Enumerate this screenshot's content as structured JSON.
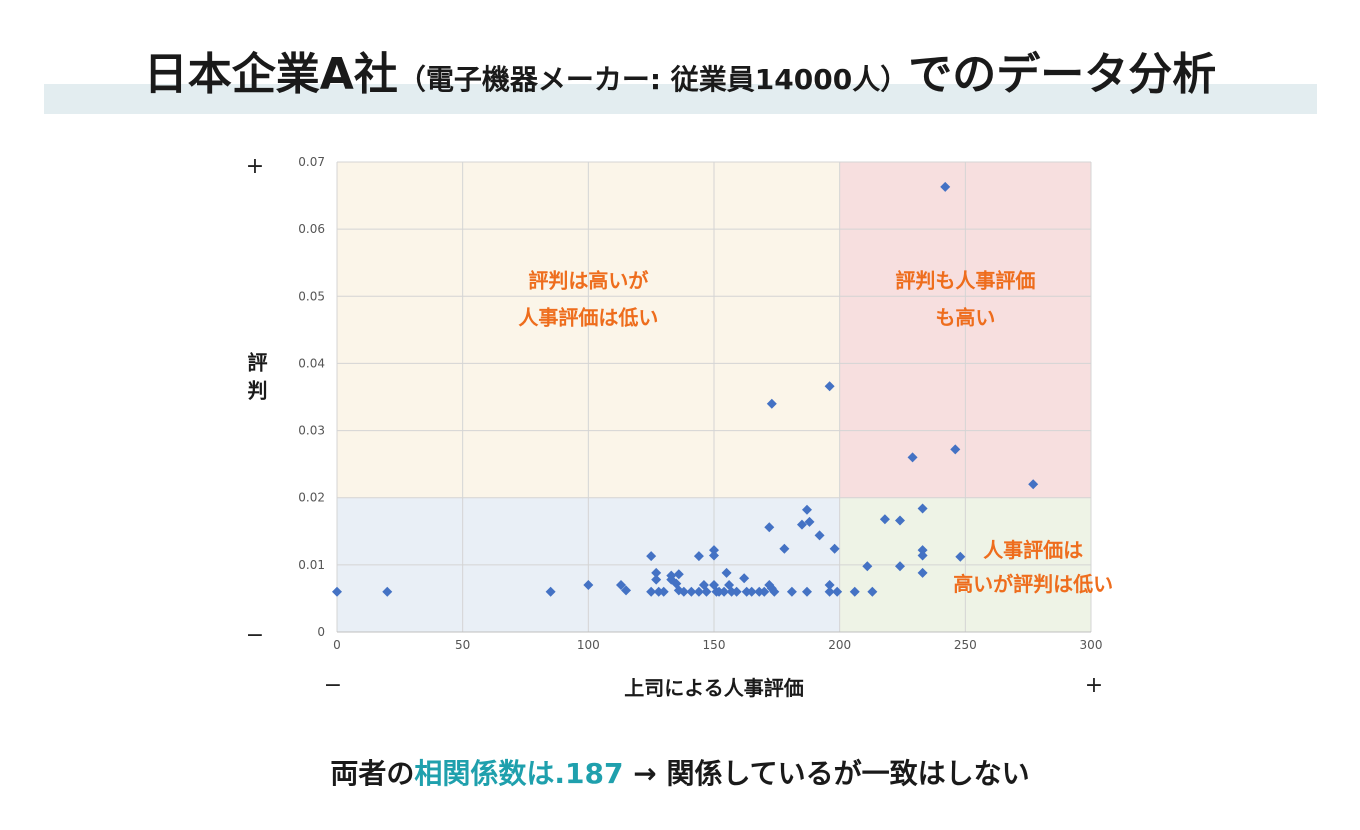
{
  "header": {
    "title_main": "日本企業A社",
    "title_paren": "（電子機器メーカー: 従業員14000人）",
    "title_tail": "でのデータ分析"
  },
  "footer": {
    "part1": "両者の",
    "highlight": "相関係数は.187",
    "part2": " → 関係しているが一致はしない"
  },
  "colors": {
    "quadrant_top_left": "#fbf5e9",
    "quadrant_top_right": "#f7dfdf",
    "quadrant_bottom_left": "#e9eff6",
    "quadrant_bottom_right": "#eef3e6",
    "marker": "#4472c4",
    "label": "#ee6d1d",
    "highlight": "#1fa0ad"
  },
  "chart_data": {
    "type": "scatter",
    "xlabel": "上司による人事評価",
    "ylabel": "評判",
    "xlim": [
      0,
      300
    ],
    "ylim": [
      0,
      0.07
    ],
    "x_ticks": [
      "0",
      "50",
      "100",
      "150",
      "200",
      "250",
      "300"
    ],
    "y_ticks": [
      "0",
      "0.01",
      "0.02",
      "0.03",
      "0.04",
      "0.05",
      "0.06",
      "0.07"
    ],
    "x_split": 200,
    "y_split": 0.02,
    "axis_signs": {
      "y_top": "+",
      "y_bottom": "−",
      "x_left": "−",
      "x_right": "+"
    },
    "quadrant_labels": {
      "top_left": [
        "評判は高いが",
        "人事評価は低い"
      ],
      "top_right": [
        "評判も人事評価",
        "も高い"
      ],
      "bottom_right": [
        "人事評価は",
        "高いが評判は低い"
      ]
    },
    "points": [
      [
        0,
        0.006
      ],
      [
        20,
        0.006
      ],
      [
        85,
        0.006
      ],
      [
        100,
        0.007
      ],
      [
        113,
        0.007
      ],
      [
        115,
        0.0062
      ],
      [
        125,
        0.0113
      ],
      [
        125,
        0.006
      ],
      [
        127,
        0.0088
      ],
      [
        127,
        0.0078
      ],
      [
        128,
        0.006
      ],
      [
        130,
        0.006
      ],
      [
        133,
        0.0084
      ],
      [
        133,
        0.0078
      ],
      [
        135,
        0.0072
      ],
      [
        136,
        0.0086
      ],
      [
        136,
        0.0062
      ],
      [
        138,
        0.006
      ],
      [
        141,
        0.006
      ],
      [
        144,
        0.0113
      ],
      [
        144,
        0.006
      ],
      [
        146,
        0.007
      ],
      [
        147,
        0.006
      ],
      [
        150,
        0.0122
      ],
      [
        150,
        0.0114
      ],
      [
        150,
        0.007
      ],
      [
        151,
        0.006
      ],
      [
        152,
        0.006
      ],
      [
        154,
        0.006
      ],
      [
        155,
        0.0088
      ],
      [
        156,
        0.007
      ],
      [
        157,
        0.006
      ],
      [
        159,
        0.006
      ],
      [
        162,
        0.008
      ],
      [
        163,
        0.006
      ],
      [
        165,
        0.006
      ],
      [
        168,
        0.006
      ],
      [
        170,
        0.006
      ],
      [
        172,
        0.007
      ],
      [
        172,
        0.0156
      ],
      [
        173,
        0.0065
      ],
      [
        173,
        0.034
      ],
      [
        174,
        0.006
      ],
      [
        178,
        0.0124
      ],
      [
        181,
        0.006
      ],
      [
        185,
        0.016
      ],
      [
        187,
        0.0182
      ],
      [
        187,
        0.006
      ],
      [
        188,
        0.0164
      ],
      [
        192,
        0.0144
      ],
      [
        196,
        0.0366
      ],
      [
        196,
        0.007
      ],
      [
        196,
        0.006
      ],
      [
        198,
        0.0124
      ],
      [
        199,
        0.006
      ],
      [
        206,
        0.006
      ],
      [
        211,
        0.0098
      ],
      [
        213,
        0.006
      ],
      [
        218,
        0.0168
      ],
      [
        224,
        0.0166
      ],
      [
        224,
        0.0098
      ],
      [
        229,
        0.026
      ],
      [
        242,
        0.0663
      ],
      [
        233,
        0.0184
      ],
      [
        233,
        0.0122
      ],
      [
        233,
        0.0114
      ],
      [
        233,
        0.0088
      ],
      [
        246,
        0.0272
      ],
      [
        248,
        0.0112
      ],
      [
        277,
        0.022
      ]
    ]
  }
}
